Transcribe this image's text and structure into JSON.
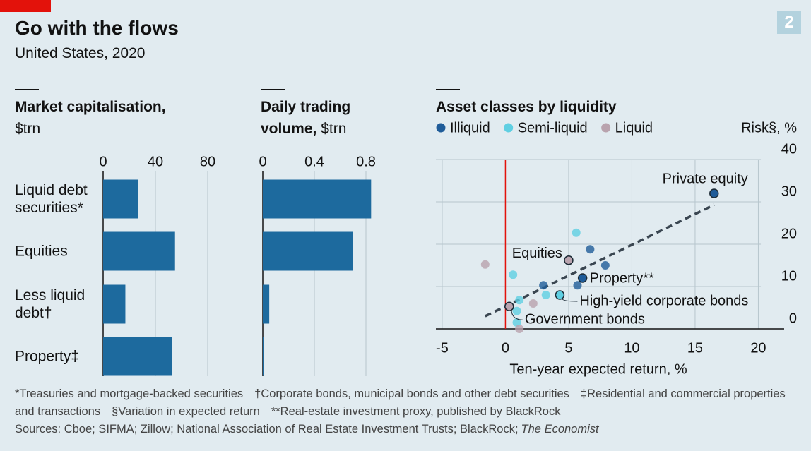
{
  "header": {
    "tag": "2",
    "title": "Go with the flows",
    "subtitle": "United States, 2020"
  },
  "chart_data": [
    {
      "type": "bar",
      "title": "Market capitalisation,",
      "unit": "$trn",
      "categories": [
        "Liquid debt securities*",
        "Equities",
        "Less liquid debt†",
        "Property‡"
      ],
      "values": [
        27,
        55,
        17,
        52.5
      ],
      "color": "#1d6a9e",
      "xlim": [
        0,
        80
      ],
      "xticks": [
        0,
        40,
        80
      ],
      "grid": true
    },
    {
      "type": "bar",
      "title": "Daily trading volume,",
      "unit": "$trn",
      "values": [
        0.84,
        0.7,
        0.05,
        0.01
      ],
      "color": "#1d6a9e",
      "xlim": [
        0,
        0.8
      ],
      "xticks": [
        0,
        0.4,
        0.8
      ],
      "grid": true
    },
    {
      "type": "scatter",
      "title": "Asset classes by liquidity",
      "xlabel": "Ten-year expected return, %",
      "ylabel": "Risk§, %",
      "xlim": [
        -5.5,
        20.2
      ],
      "ylim": [
        0,
        40
      ],
      "xticks": [
        -5,
        0,
        5,
        10,
        15,
        20
      ],
      "yticks": [
        0,
        10,
        20,
        30,
        40
      ],
      "grid": true,
      "reference_line": {
        "x": 0,
        "color": "#e3120b"
      },
      "trend": {
        "x": [
          -1.6,
          16.5
        ],
        "y": [
          3,
          29.3
        ],
        "color": "#3a4651"
      },
      "series": [
        {
          "name": "Illiquid",
          "color": "#1f5c99",
          "x": [
            16.5,
            6.7,
            7.9,
            6.1,
            3.0,
            5.7
          ],
          "y": [
            32,
            18.8,
            15,
            12,
            10.3,
            10.3
          ],
          "labels": [
            "Private equity",
            null,
            null,
            "Property**",
            null,
            null
          ]
        },
        {
          "name": "Semi-liquid",
          "color": "#5fcfe2",
          "x": [
            5.6,
            0.6,
            1.1,
            3.2,
            4.3,
            0.9,
            0.9
          ],
          "y": [
            22.7,
            12.8,
            6.8,
            8,
            8,
            4.2,
            1.5
          ],
          "labels": [
            null,
            null,
            null,
            null,
            "High-yield corporate bonds",
            null,
            null
          ]
        },
        {
          "name": "Liquid",
          "color": "#b9a3ae",
          "x": [
            -1.6,
            5.0,
            2.2,
            0.3,
            1.1
          ],
          "y": [
            15.2,
            16.2,
            6,
            5.3,
            0
          ],
          "labels": [
            null,
            "Equities",
            null,
            "Government bonds",
            null
          ]
        }
      ]
    }
  ],
  "footnotes": [
    "*Treasuries and mortgage-backed securities",
    "†Corporate bonds, municipal bonds and other debt securities",
    "‡Residential and commercial properties and transactions",
    "§Variation in expected return",
    "**Real-estate investment proxy, published by BlackRock"
  ],
  "source": "Sources: Cboe; SIFMA; Zillow; National Association of Real Estate Investment Trusts; BlackRock;",
  "source_publication": "The Economist"
}
